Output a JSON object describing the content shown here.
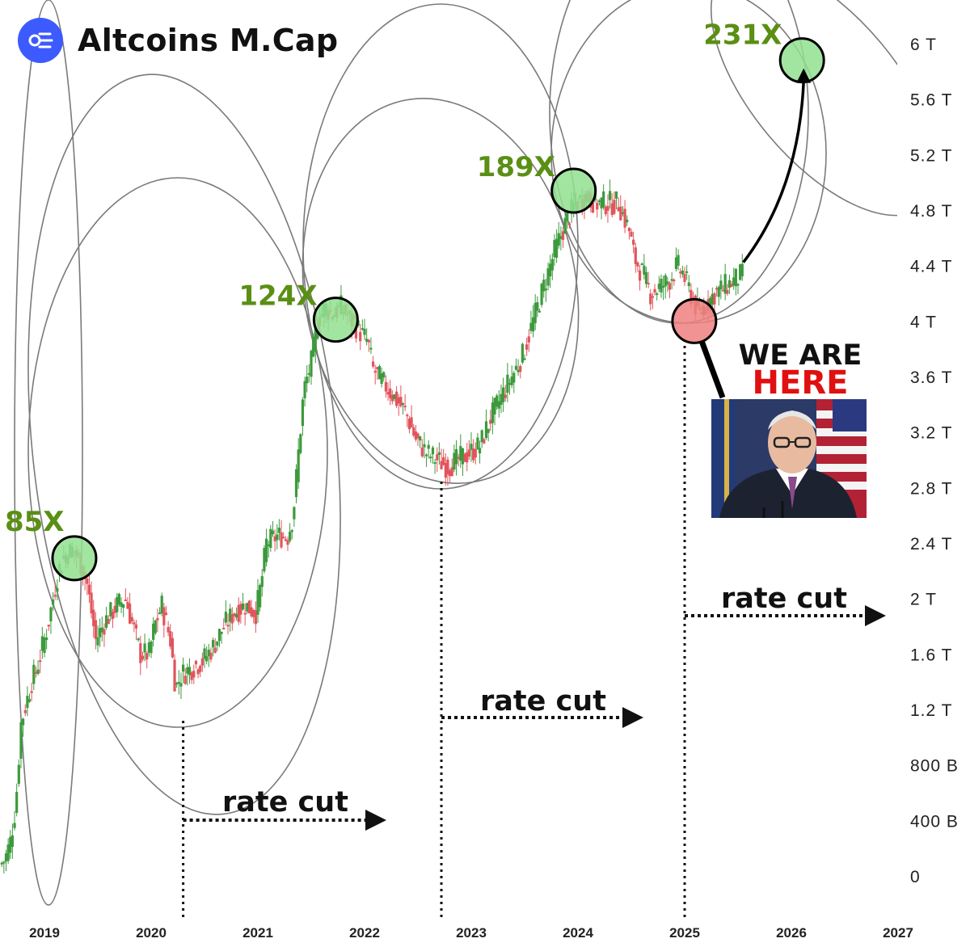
{
  "header": {
    "title": "Altcoins M.Cap",
    "logo_icon": "altcoins-logo-icon",
    "brand_color": "#3d5afe"
  },
  "chart_data": {
    "type": "candlestick",
    "title": "Altcoins M.Cap",
    "y_axis": {
      "ticks": [
        "6 T",
        "5.6 T",
        "5.2 T",
        "4.8 T",
        "4.4 T",
        "4 T",
        "3.6 T",
        "3.2 T",
        "2.8 T",
        "2.4 T",
        "2 T",
        "1.6 T",
        "1.2 T",
        "800 B",
        "400 B",
        "0"
      ],
      "tick_values": [
        6000,
        5600,
        5200,
        4800,
        4400,
        4000,
        3600,
        3200,
        2800,
        2400,
        2000,
        1600,
        1200,
        800,
        400,
        0
      ],
      "unit": "B"
    },
    "x_axis": {
      "ticks": [
        "2019",
        "2020",
        "2021",
        "2022",
        "2023",
        "2024",
        "2025",
        "2026",
        "2027"
      ],
      "tick_values": [
        2019,
        2020,
        2021,
        2022,
        2023,
        2024,
        2025,
        2026,
        2027
      ]
    },
    "price_path": [
      [
        2018.6,
        80
      ],
      [
        2018.65,
        120
      ],
      [
        2018.7,
        250
      ],
      [
        2018.75,
        500
      ],
      [
        2018.8,
        1100
      ],
      [
        2018.85,
        1250
      ],
      [
        2018.9,
        1400
      ],
      [
        2018.95,
        1500
      ],
      [
        2019.0,
        1650
      ],
      [
        2019.05,
        1800
      ],
      [
        2019.1,
        2000
      ],
      [
        2019.15,
        2200
      ],
      [
        2019.2,
        2300
      ],
      [
        2019.28,
        2350
      ],
      [
        2019.35,
        2280
      ],
      [
        2019.42,
        2100
      ],
      [
        2019.5,
        1700
      ],
      [
        2019.6,
        1850
      ],
      [
        2019.7,
        1950
      ],
      [
        2019.78,
        2000
      ],
      [
        2019.85,
        1800
      ],
      [
        2019.92,
        1600
      ],
      [
        2020.0,
        1600
      ],
      [
        2020.05,
        1800
      ],
      [
        2020.12,
        1950
      ],
      [
        2020.2,
        1700
      ],
      [
        2020.25,
        1350
      ],
      [
        2020.3,
        1450
      ],
      [
        2020.4,
        1500
      ],
      [
        2020.5,
        1550
      ],
      [
        2020.6,
        1650
      ],
      [
        2020.7,
        1800
      ],
      [
        2020.8,
        1900
      ],
      [
        2020.9,
        1950
      ],
      [
        2021.0,
        1900
      ],
      [
        2021.05,
        2100
      ],
      [
        2021.1,
        2400
      ],
      [
        2021.2,
        2450
      ],
      [
        2021.3,
        2450
      ],
      [
        2021.35,
        2600
      ],
      [
        2021.45,
        3500
      ],
      [
        2021.52,
        3700
      ],
      [
        2021.58,
        4000
      ],
      [
        2021.65,
        4100
      ],
      [
        2021.72,
        4050
      ],
      [
        2021.8,
        4100
      ],
      [
        2021.9,
        4000
      ],
      [
        2022.0,
        3900
      ],
      [
        2022.05,
        3850
      ],
      [
        2022.1,
        3650
      ],
      [
        2022.2,
        3550
      ],
      [
        2022.3,
        3450
      ],
      [
        2022.4,
        3350
      ],
      [
        2022.5,
        3150
      ],
      [
        2022.6,
        3050
      ],
      [
        2022.7,
        3000
      ],
      [
        2022.8,
        2950
      ],
      [
        2022.9,
        3000
      ],
      [
        2023.0,
        3050
      ],
      [
        2023.1,
        3100
      ],
      [
        2023.2,
        3300
      ],
      [
        2023.3,
        3450
      ],
      [
        2023.4,
        3600
      ],
      [
        2023.5,
        3750
      ],
      [
        2023.6,
        4000
      ],
      [
        2023.7,
        4250
      ],
      [
        2023.8,
        4500
      ],
      [
        2023.9,
        4700
      ],
      [
        2024.0,
        4850
      ],
      [
        2024.1,
        4900
      ],
      [
        2024.2,
        4850
      ],
      [
        2024.3,
        4850
      ],
      [
        2024.4,
        4850
      ],
      [
        2024.5,
        4650
      ],
      [
        2024.55,
        4450
      ],
      [
        2024.62,
        4350
      ],
      [
        2024.7,
        4200
      ],
      [
        2024.8,
        4250
      ],
      [
        2024.88,
        4300
      ],
      [
        2024.95,
        4400
      ],
      [
        2025.0,
        4350
      ],
      [
        2025.05,
        4250
      ],
      [
        2025.1,
        4150
      ],
      [
        2025.15,
        4050
      ],
      [
        2025.2,
        4100
      ],
      [
        2025.3,
        4200
      ],
      [
        2025.4,
        4250
      ],
      [
        2025.5,
        4300
      ],
      [
        2025.55,
        4330
      ]
    ],
    "markers": [
      {
        "label": "85X",
        "x": 2019.28,
        "y": 2290,
        "color": "#90e090"
      },
      {
        "label": "124X",
        "x": 2021.73,
        "y": 4010,
        "color": "#90e090"
      },
      {
        "label": "189X",
        "x": 2023.96,
        "y": 4940,
        "color": "#90e090"
      },
      {
        "label": "231X",
        "x": 2026.1,
        "y": 5880,
        "color": "#90e090"
      },
      {
        "label": "WE ARE HERE",
        "x": 2025.09,
        "y": 4000,
        "color": "#f08080"
      }
    ],
    "rate_cut_lines": [
      2020.3,
      2022.72,
      2025.0
    ],
    "annotations": {
      "rate_cut": "rate cut",
      "here_line1": "WE ARE",
      "here_line2": "HERE"
    },
    "colors": {
      "up": "#3c9a3c",
      "down": "#e2545c"
    }
  }
}
